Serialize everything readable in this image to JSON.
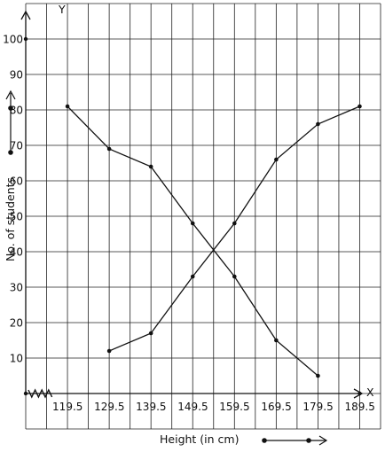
{
  "chart_data": {
    "type": "line",
    "xlabel": "Height (in cm)",
    "ylabel": "No. of students",
    "x_axis_letter": "X",
    "y_axis_letter": "Y",
    "x_ticks": [
      "119.5",
      "129.5",
      "139.5",
      "149.5",
      "159.5",
      "169.5",
      "179.5",
      "189.5"
    ],
    "y_ticks": [
      "10",
      "20",
      "30",
      "40",
      "50",
      "60",
      "70",
      "80",
      "90",
      "100"
    ],
    "xlim": [
      109.5,
      194.5
    ],
    "ylim": [
      -10,
      110
    ],
    "grid": true,
    "x_axis_break": true,
    "series": [
      {
        "x": [
          119.5,
          129.5,
          139.5,
          149.5,
          159.5,
          169.5,
          179.5
        ],
        "y": [
          81,
          69,
          64,
          48,
          33,
          15,
          5
        ]
      },
      {
        "x": [
          129.5,
          139.5,
          149.5,
          159.5,
          169.5,
          179.5,
          189.5
        ],
        "y": [
          12,
          17,
          33,
          48,
          66,
          76,
          81
        ]
      }
    ],
    "colors": {
      "line": "#111111",
      "grid": "#222222"
    }
  }
}
